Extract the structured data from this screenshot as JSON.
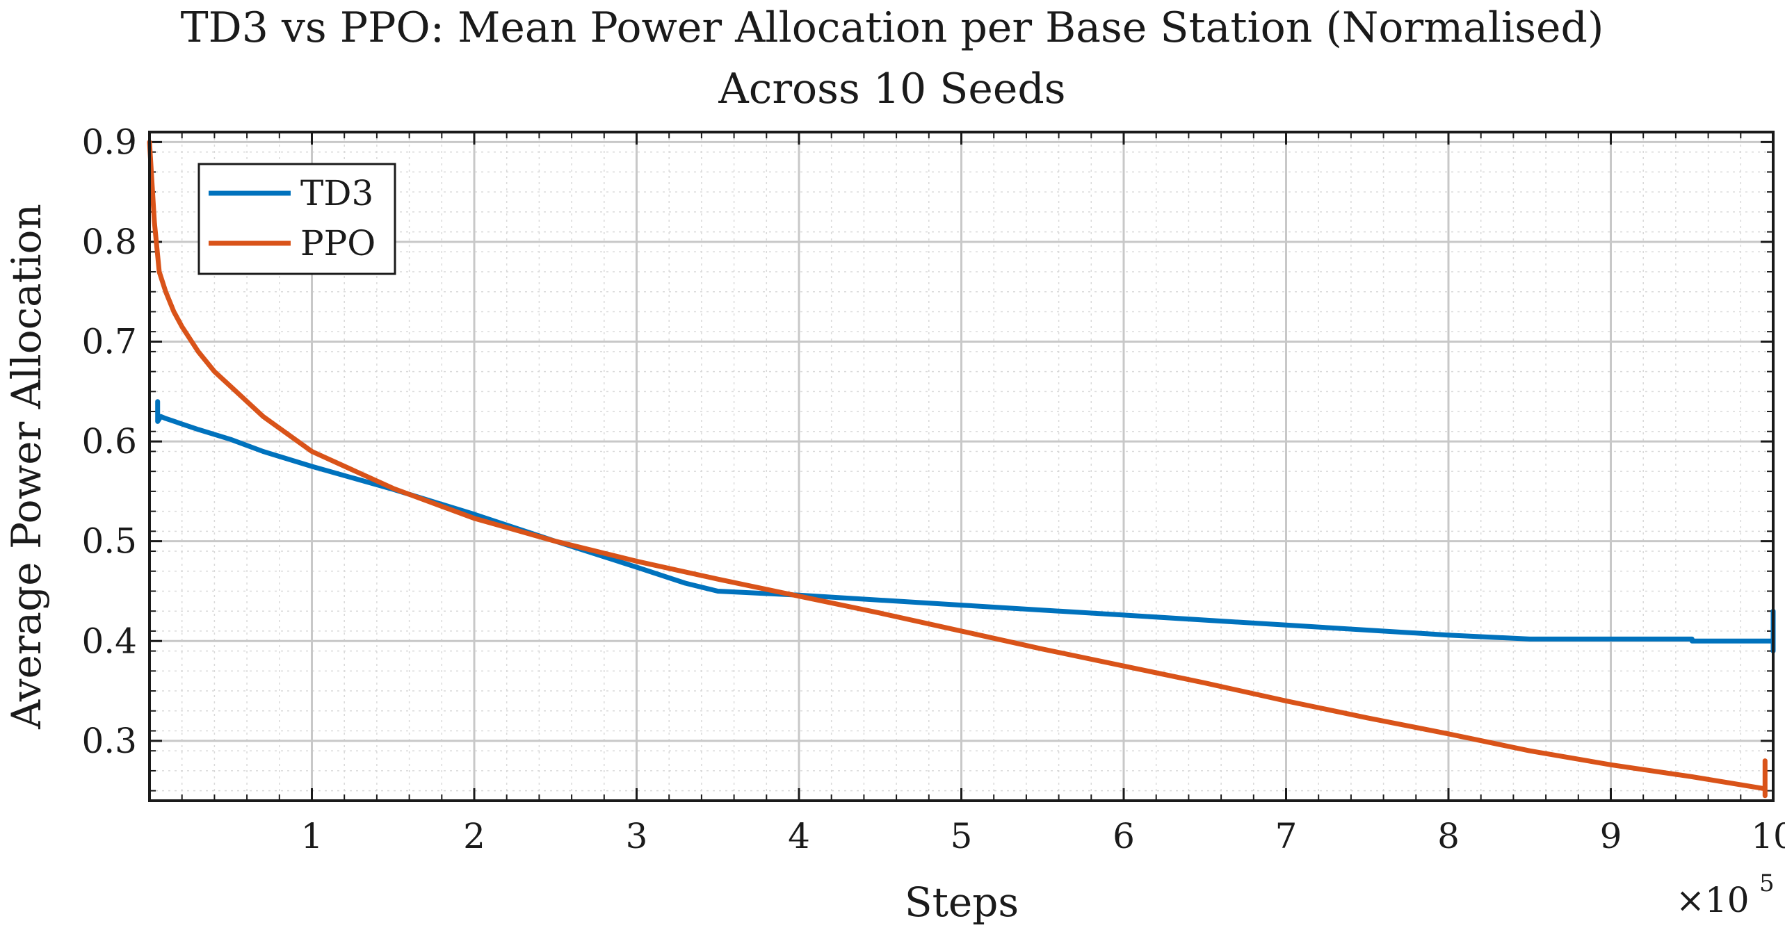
{
  "chart_data": {
    "type": "line",
    "title": "TD3 vs PPO: Mean Power Allocation per Base Station (Normalised)",
    "subtitle": "Across 10 Seeds",
    "xlabel": "Steps",
    "ylabel": "Average Power Allocation",
    "x_exponent_label": "×10",
    "x_exponent_power": "5",
    "xlim": [
      0,
      10
    ],
    "ylim": [
      0.24,
      0.91
    ],
    "xticks": [
      1,
      2,
      3,
      4,
      5,
      6,
      7,
      8,
      9,
      10
    ],
    "xtick_labels": [
      "1",
      "2",
      "3",
      "4",
      "5",
      "6",
      "7",
      "8",
      "9",
      "10"
    ],
    "yticks": [
      0.3,
      0.4,
      0.5,
      0.6,
      0.7,
      0.8,
      0.9
    ],
    "ytick_labels": [
      "0.3",
      "0.4",
      "0.5",
      "0.6",
      "0.7",
      "0.8",
      "0.9"
    ],
    "grid": true,
    "minor_grid": true,
    "legend_position": "top-left",
    "series": [
      {
        "name": "TD3",
        "color": "#0072BD",
        "x": [
          0.05,
          0.05,
          0.07,
          0.1,
          0.3,
          0.5,
          0.7,
          1.0,
          1.5,
          2.0,
          2.5,
          3.0,
          3.3,
          3.5,
          4.0,
          5.0,
          6.0,
          7.0,
          8.0,
          8.5,
          9.0,
          9.5,
          9.5,
          10.0,
          10.0,
          10.0
        ],
        "y": [
          0.64,
          0.62,
          0.625,
          0.623,
          0.612,
          0.602,
          0.59,
          0.575,
          0.552,
          0.527,
          0.5,
          0.474,
          0.458,
          0.45,
          0.446,
          0.436,
          0.426,
          0.416,
          0.406,
          0.402,
          0.402,
          0.402,
          0.4,
          0.4,
          0.43,
          0.39
        ]
      },
      {
        "name": "PPO",
        "color": "#D95319",
        "x": [
          0.0,
          0.03,
          0.06,
          0.1,
          0.15,
          0.2,
          0.3,
          0.4,
          0.5,
          0.7,
          1.0,
          1.5,
          2.0,
          2.5,
          3.0,
          3.5,
          4.0,
          4.5,
          5.0,
          5.5,
          6.0,
          6.5,
          7.0,
          7.5,
          8.0,
          8.5,
          9.0,
          9.5,
          9.95,
          9.95,
          9.95
        ],
        "y": [
          0.9,
          0.82,
          0.77,
          0.75,
          0.73,
          0.715,
          0.69,
          0.67,
          0.655,
          0.625,
          0.59,
          0.553,
          0.523,
          0.5,
          0.48,
          0.462,
          0.445,
          0.428,
          0.41,
          0.392,
          0.375,
          0.358,
          0.34,
          0.323,
          0.307,
          0.29,
          0.276,
          0.264,
          0.252,
          0.28,
          0.245
        ]
      }
    ]
  }
}
